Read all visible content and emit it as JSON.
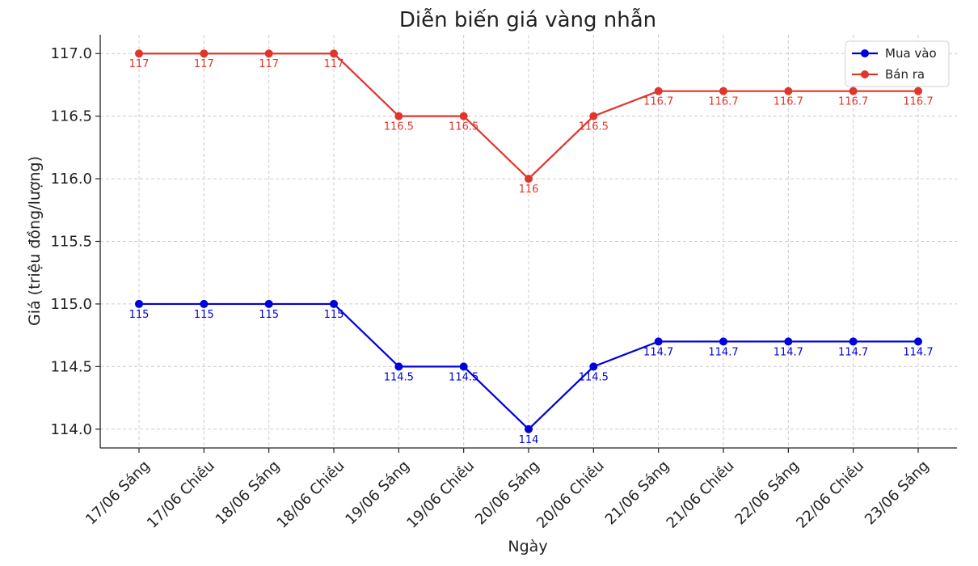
{
  "chart_data": {
    "type": "line",
    "title": "Diễn biến giá vàng nhẫn",
    "xlabel": "Ngày",
    "ylabel": "Giá (triệu đồng/lượng)",
    "categories": [
      "17/06 Sáng",
      "17/06 Chiều",
      "18/06 Sáng",
      "18/06 Chiều",
      "19/06 Sáng",
      "19/06 Chiều",
      "20/06 Sáng",
      "20/06 Chiều",
      "21/06 Sáng",
      "21/06 Chiều",
      "22/06 Sáng",
      "22/06 Chiều",
      "23/06 Sáng"
    ],
    "yticks": [
      "114.0",
      "114.5",
      "115.0",
      "115.5",
      "116.0",
      "116.5",
      "117.0"
    ],
    "ylim": [
      113.85,
      117.15
    ],
    "grid": true,
    "legend_position": "top-right",
    "series": [
      {
        "name": "Mua vào",
        "color": "#0000dd",
        "values": [
          115,
          115,
          115,
          115,
          114.5,
          114.5,
          114,
          114.5,
          114.7,
          114.7,
          114.7,
          114.7,
          114.7
        ],
        "labels": [
          "115",
          "115",
          "115",
          "115",
          "114.5",
          "114.5",
          "114",
          "114.5",
          "114.7",
          "114.7",
          "114.7",
          "114.7",
          "114.7"
        ]
      },
      {
        "name": "Bán ra",
        "color": "#e0352b",
        "values": [
          117,
          117,
          117,
          117,
          116.5,
          116.5,
          116,
          116.5,
          116.7,
          116.7,
          116.7,
          116.7,
          116.7
        ],
        "labels": [
          "117",
          "117",
          "117",
          "117",
          "116.5",
          "116.5",
          "116",
          "116.5",
          "116.7",
          "116.7",
          "116.7",
          "116.7",
          "116.7"
        ]
      }
    ]
  }
}
